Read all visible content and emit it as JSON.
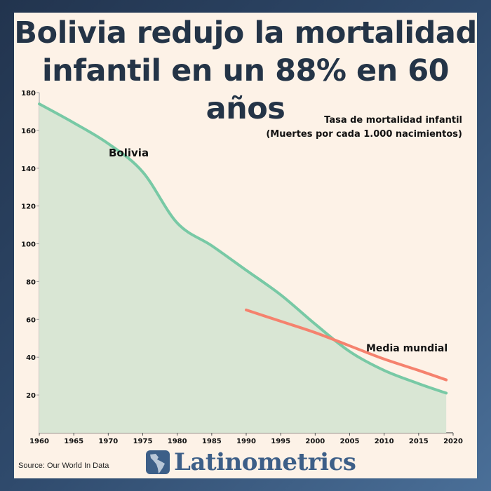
{
  "title": "Bolivia redujo la mortalidad infantil en un 88% en 60 años",
  "source": "Source: Our World In Data",
  "logo": {
    "text": "Latinometrics",
    "icon": "latin-america-map-icon"
  },
  "colors": {
    "bolivia": "#78c9a5",
    "bolivia_fill": "#d9e6d4",
    "world": "#f5826e",
    "title": "#243447",
    "brand": "#3d5f88"
  },
  "chart_data": {
    "type": "area",
    "title": "Tasa de mortalidad infantil",
    "subtitle": "(Muertes por cada 1.000 nacimientos)",
    "xlim": [
      1960,
      2020
    ],
    "ylim": [
      0,
      180
    ],
    "xticks": [
      1960,
      1965,
      1970,
      1975,
      1980,
      1985,
      1990,
      1995,
      2000,
      2005,
      2010,
      2015,
      2020
    ],
    "yticks": [
      20,
      40,
      60,
      80,
      100,
      120,
      140,
      160,
      180
    ],
    "grid": false,
    "series": [
      {
        "name": "Bolivia",
        "x": [
          1960,
          1965,
          1970,
          1975,
          1980,
          1985,
          1990,
          1995,
          2000,
          2005,
          2010,
          2015,
          2019
        ],
        "values": [
          174,
          164,
          153,
          138,
          111,
          99,
          86,
          73,
          57.5,
          43,
          33,
          26,
          21
        ]
      },
      {
        "name": "Media mundial",
        "x": [
          1990,
          1995,
          2000,
          2005,
          2010,
          2015,
          2019
        ],
        "values": [
          65,
          59,
          53,
          46,
          39,
          33,
          28
        ]
      }
    ]
  }
}
